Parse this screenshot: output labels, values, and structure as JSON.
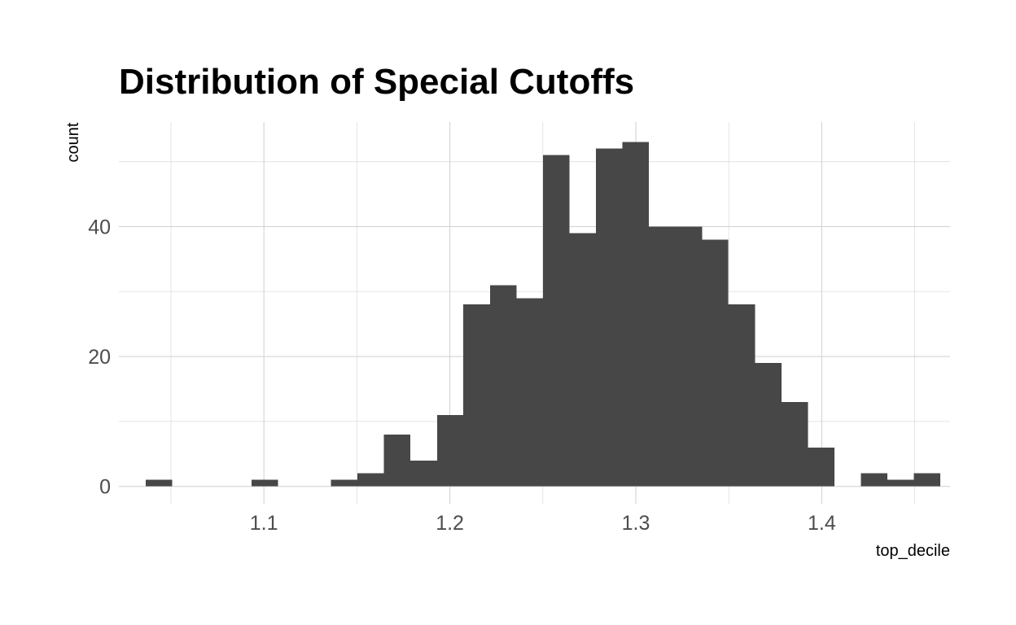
{
  "chart_data": {
    "type": "bar",
    "title": "Distribution of Special Cutoffs",
    "xlabel": "top_decile",
    "ylabel": "count",
    "bar_color": "#474747",
    "grid": true,
    "xlim": [
      1.022,
      1.469
    ],
    "ylim": [
      -2.67,
      56.1
    ],
    "x_ticks": [
      "1.1",
      "1.2",
      "1.3",
      "1.4"
    ],
    "y_ticks": [
      "0",
      "20",
      "40"
    ],
    "bins": [
      {
        "x0": 1.0365,
        "x1": 1.0507,
        "count": 1
      },
      {
        "x0": 1.0934,
        "x1": 1.1076,
        "count": 1
      },
      {
        "x0": 1.1361,
        "x1": 1.1503,
        "count": 1
      },
      {
        "x0": 1.1503,
        "x1": 1.1646,
        "count": 2
      },
      {
        "x0": 1.1646,
        "x1": 1.1788,
        "count": 8
      },
      {
        "x0": 1.1788,
        "x1": 1.1931,
        "count": 4
      },
      {
        "x0": 1.1931,
        "x1": 1.2073,
        "count": 11
      },
      {
        "x0": 1.2073,
        "x1": 1.2216,
        "count": 28
      },
      {
        "x0": 1.2216,
        "x1": 1.2358,
        "count": 31
      },
      {
        "x0": 1.2358,
        "x1": 1.2501,
        "count": 29
      },
      {
        "x0": 1.2501,
        "x1": 1.2643,
        "count": 51
      },
      {
        "x0": 1.2643,
        "x1": 1.2786,
        "count": 39
      },
      {
        "x0": 1.2786,
        "x1": 1.2928,
        "count": 52
      },
      {
        "x0": 1.2928,
        "x1": 1.3071,
        "count": 53
      },
      {
        "x0": 1.3071,
        "x1": 1.3213,
        "count": 40
      },
      {
        "x0": 1.3213,
        "x1": 1.3356,
        "count": 40
      },
      {
        "x0": 1.3356,
        "x1": 1.3498,
        "count": 38
      },
      {
        "x0": 1.3498,
        "x1": 1.3641,
        "count": 28
      },
      {
        "x0": 1.3641,
        "x1": 1.3783,
        "count": 19
      },
      {
        "x0": 1.3783,
        "x1": 1.3926,
        "count": 13
      },
      {
        "x0": 1.3926,
        "x1": 1.4068,
        "count": 6
      },
      {
        "x0": 1.4211,
        "x1": 1.4353,
        "count": 2
      },
      {
        "x0": 1.4353,
        "x1": 1.4496,
        "count": 1
      },
      {
        "x0": 1.4496,
        "x1": 1.4638,
        "count": 2
      }
    ]
  }
}
